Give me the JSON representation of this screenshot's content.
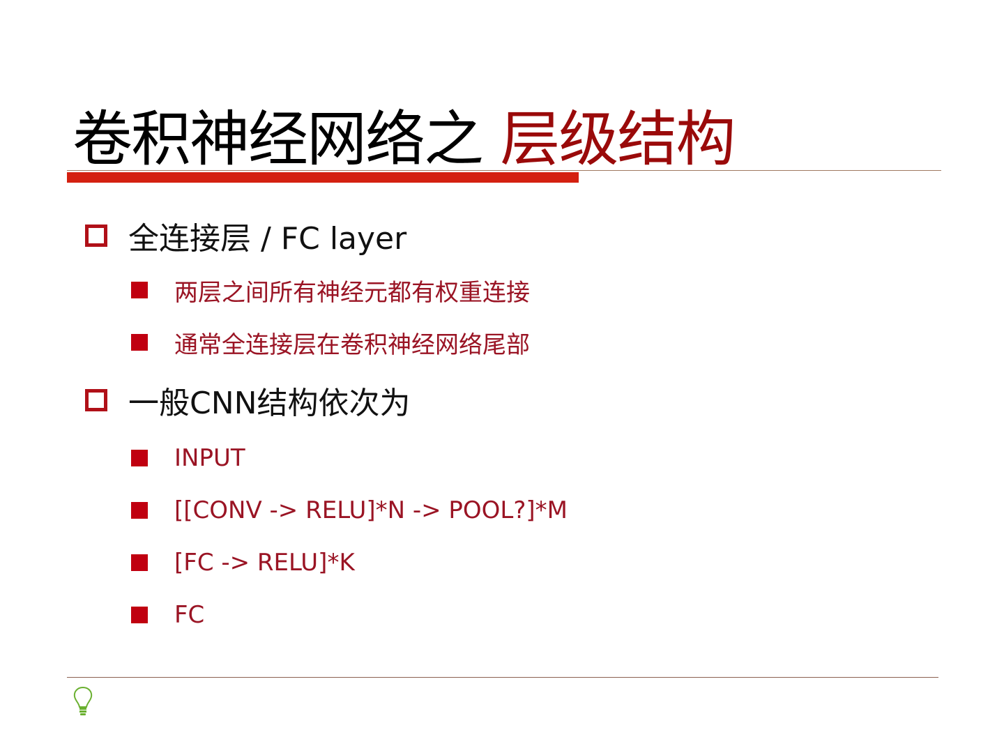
{
  "title": {
    "part1": "卷积神经网络之",
    "part2": "层级结构"
  },
  "colors": {
    "title_accent": "#9a0a0a",
    "bar": "#d42010",
    "bullet": "#c00010",
    "sub_text": "#9a1424",
    "bulb": "#6ab030"
  },
  "sections": [
    {
      "heading": "全连接层 / FC layer",
      "items": [
        "两层之间所有神经元都有权重连接",
        "通常全连接层在卷积神经网络尾部"
      ]
    },
    {
      "heading": "一般CNN结构依次为",
      "items": [
        "INPUT",
        "[[CONV -> RELU]*N -> POOL?]*M",
        "[FC -> RELU]*K",
        "FC"
      ]
    }
  ],
  "footer_icon": "lightbulb-icon"
}
